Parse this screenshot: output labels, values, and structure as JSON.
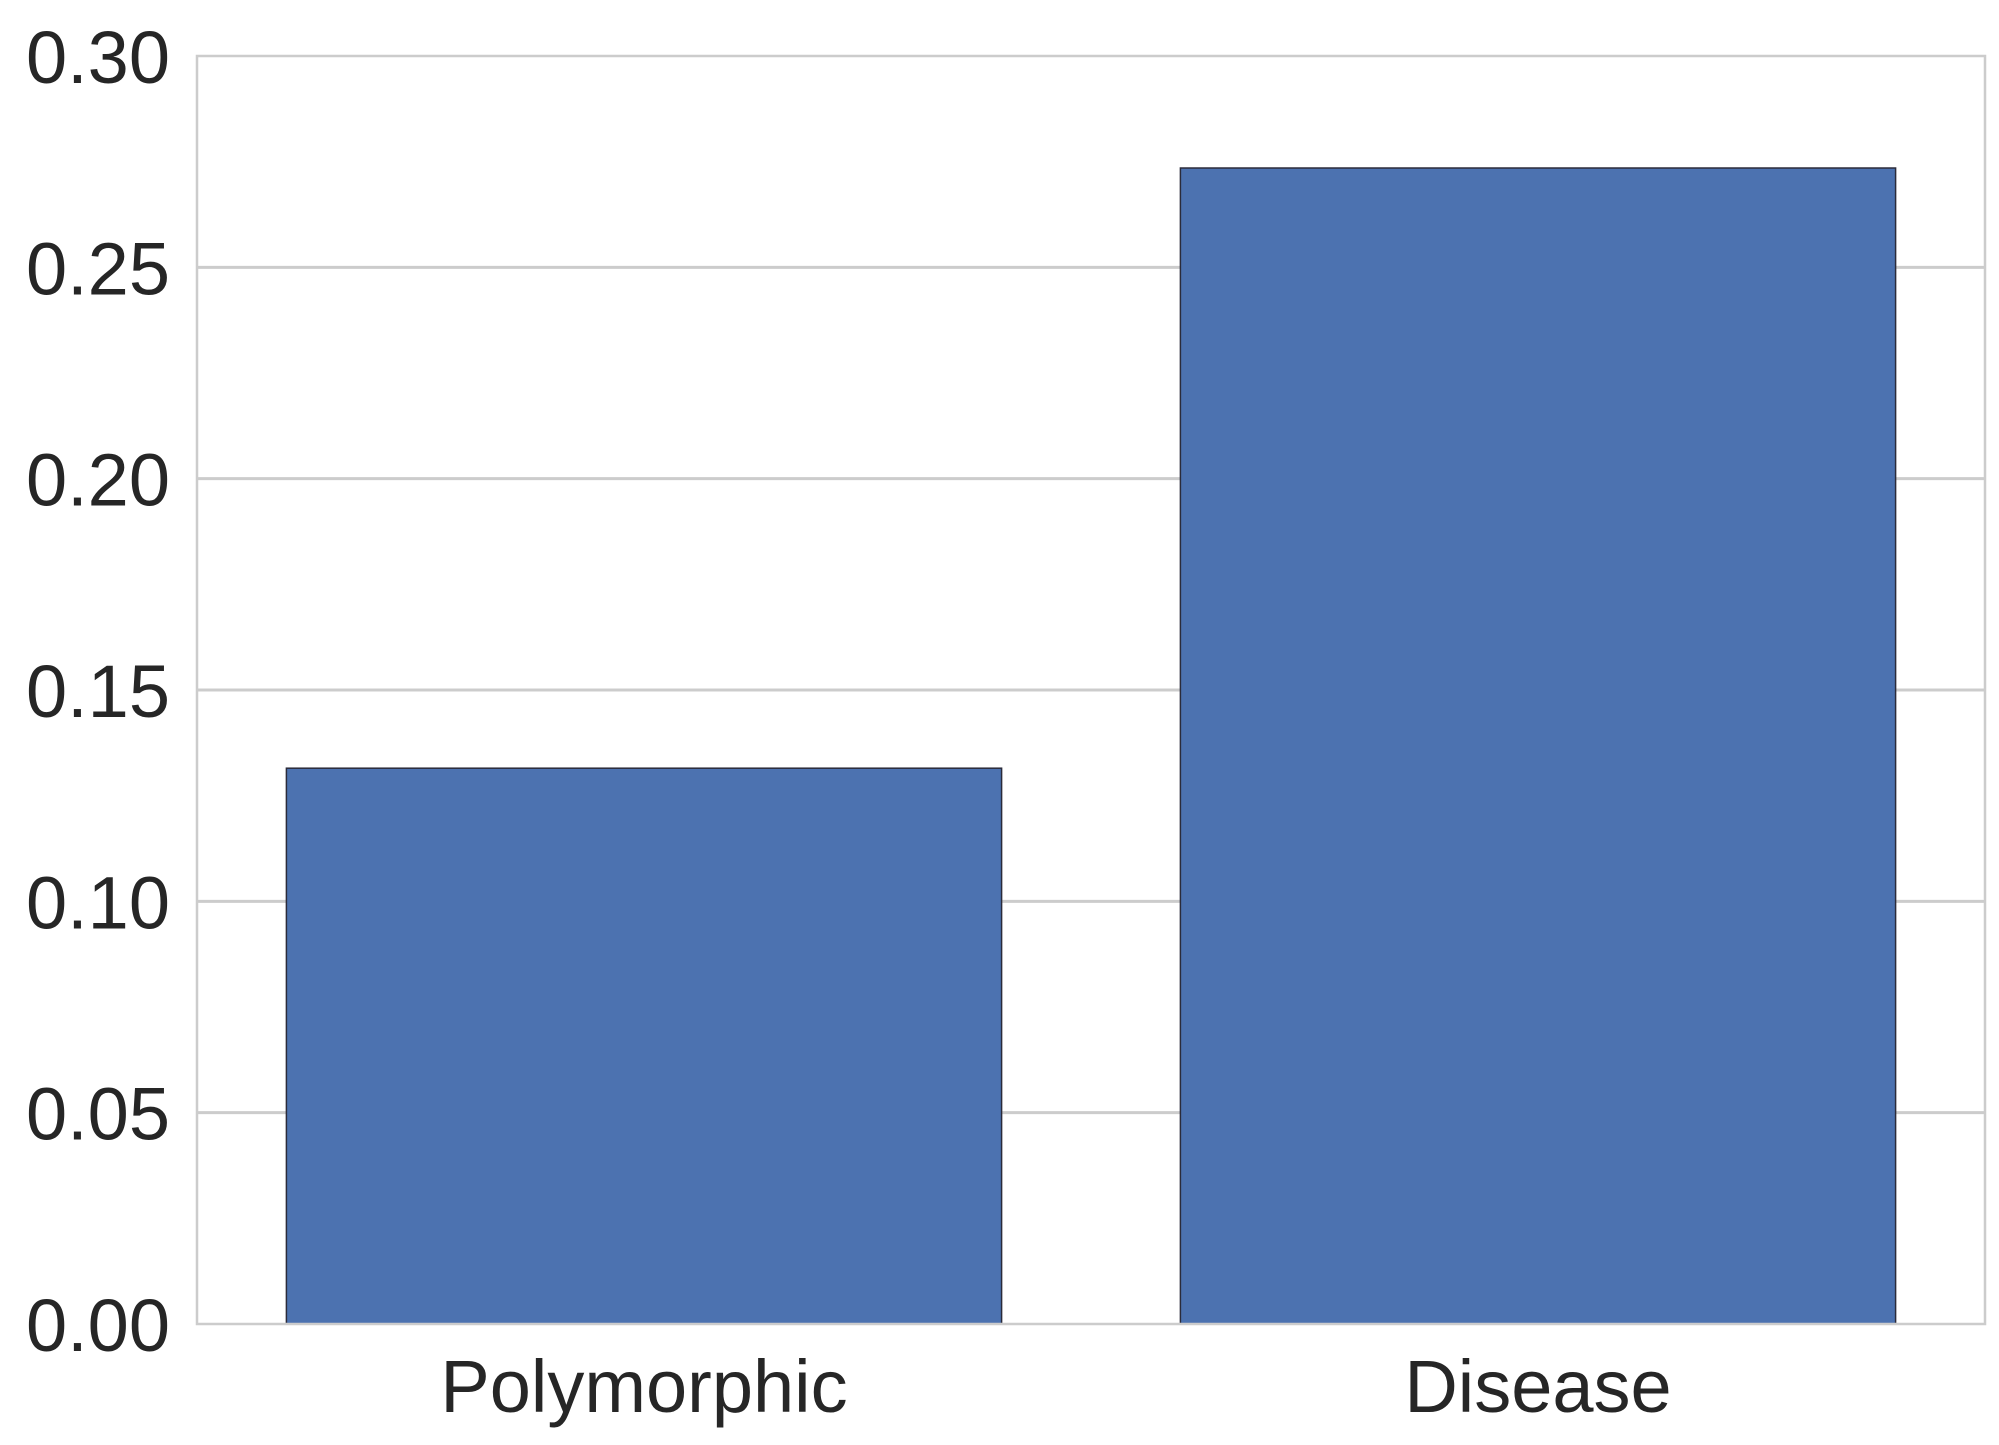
{
  "chart_data": {
    "type": "bar",
    "categories": [
      "Polymorphic",
      "Disease"
    ],
    "values": [
      0.1315,
      0.2735
    ],
    "title": "",
    "xlabel": "",
    "ylabel": "",
    "ylim": [
      0,
      0.3
    ],
    "yticks": [
      "0.00",
      "0.05",
      "0.10",
      "0.15",
      "0.20",
      "0.25",
      "0.30"
    ],
    "grid": "horizontal",
    "colors": {
      "bar": "#4c72b0",
      "bar_edge": "#2b2b3a",
      "grid": "#cccccc",
      "frame": "#cccccc",
      "text": "#262626"
    }
  }
}
